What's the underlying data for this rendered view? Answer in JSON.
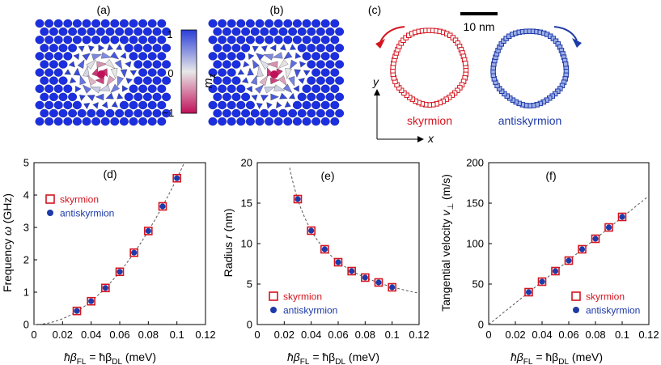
{
  "panels_top": {
    "a": "(a)",
    "b": "(b)",
    "c": "(c)"
  },
  "colorbar": {
    "label": "m",
    "label_sub": "z",
    "ticks": [
      "1",
      "0",
      "−1"
    ],
    "colors": {
      "top": "#2a3fd8",
      "mid": "#e8e8e8",
      "bottom": "#c0105a"
    }
  },
  "trajectory": {
    "scale_label": "10 nm",
    "skyrmion_label": "skyrmion",
    "antiskyrmion_label": "antiskyrmion",
    "x_axis": "x",
    "y_axis": "y",
    "colors": {
      "skyrmion": "#d4141e",
      "antiskyrmion": "#1e3aa8"
    }
  },
  "chart_data": [
    {
      "type": "scatter",
      "panel": "(d)",
      "xlabel": "ħβFL = ħβDL (meV)",
      "xlabel_parts": [
        "ħβ",
        "FL",
        " = ħβ",
        "DL",
        " (meV)"
      ],
      "ylabel": "Frequency ω (GHz)",
      "xlim": [
        0,
        0.12
      ],
      "ylim": [
        0,
        5
      ],
      "xticks": [
        "0",
        "0.02",
        "0.04",
        "0.06",
        "0.08",
        "0.1",
        "0.12"
      ],
      "yticks": [
        "0",
        "1",
        "2",
        "3",
        "4",
        "5"
      ],
      "x": [
        0.03,
        0.04,
        0.05,
        0.06,
        0.07,
        0.08,
        0.09,
        0.1
      ],
      "series": [
        {
          "name": "skyrmion",
          "values": [
            0.42,
            0.72,
            1.13,
            1.63,
            2.22,
            2.89,
            3.65,
            4.52
          ]
        },
        {
          "name": "antiskyrmion",
          "values": [
            0.42,
            0.72,
            1.13,
            1.63,
            2.22,
            2.89,
            3.65,
            4.52
          ]
        }
      ],
      "fit": "quadratic",
      "legend": [
        "skyrmion",
        "antiskyrmion"
      ],
      "legend_position": "top-left"
    },
    {
      "type": "scatter",
      "panel": "(e)",
      "xlabel": "ħβFL = ħβDL (meV)",
      "xlabel_parts": [
        "ħβ",
        "FL",
        " = ħβ",
        "DL",
        " (meV)"
      ],
      "ylabel": "Radius r (nm)",
      "xlim": [
        0,
        0.12
      ],
      "ylim": [
        0,
        20
      ],
      "xticks": [
        "0",
        "0.02",
        "0.04",
        "0.06",
        "0.08",
        "0.1",
        "0.12"
      ],
      "yticks": [
        "0",
        "5",
        "10",
        "15",
        "20"
      ],
      "x": [
        0.03,
        0.04,
        0.05,
        0.06,
        0.07,
        0.08,
        0.09,
        0.1
      ],
      "series": [
        {
          "name": "skyrmion",
          "values": [
            15.5,
            11.6,
            9.3,
            7.7,
            6.6,
            5.8,
            5.2,
            4.6
          ]
        },
        {
          "name": "antiskyrmion",
          "values": [
            15.5,
            11.6,
            9.3,
            7.7,
            6.6,
            5.8,
            5.2,
            4.6
          ]
        }
      ],
      "fit": "inverse",
      "legend": [
        "skyrmion",
        "antiskyrmion"
      ],
      "legend_position": "bottom-left"
    },
    {
      "type": "scatter",
      "panel": "(f)",
      "xlabel": "ħβFL = ħβDL (meV)",
      "xlabel_parts": [
        "ħβ",
        "FL",
        " = ħβ",
        "DL",
        " (meV)"
      ],
      "ylabel": "Tangential velocity v⊥ (m/s)",
      "xlim": [
        0,
        0.12
      ],
      "ylim": [
        0,
        200
      ],
      "xticks": [
        "0",
        "0.02",
        "0.04",
        "0.06",
        "0.08",
        "0.1",
        "0.12"
      ],
      "yticks": [
        "0",
        "50",
        "100",
        "150",
        "200"
      ],
      "x": [
        0.03,
        0.04,
        0.05,
        0.06,
        0.07,
        0.08,
        0.09,
        0.1
      ],
      "series": [
        {
          "name": "skyrmion",
          "values": [
            40,
            53,
            66,
            79,
            93,
            106,
            120,
            133
          ]
        },
        {
          "name": "antiskyrmion",
          "values": [
            40,
            53,
            66,
            79,
            93,
            106,
            120,
            133
          ]
        }
      ],
      "fit": "linear",
      "legend": [
        "skyrmion",
        "antiskyrmion"
      ],
      "legend_position": "bottom-right"
    }
  ]
}
